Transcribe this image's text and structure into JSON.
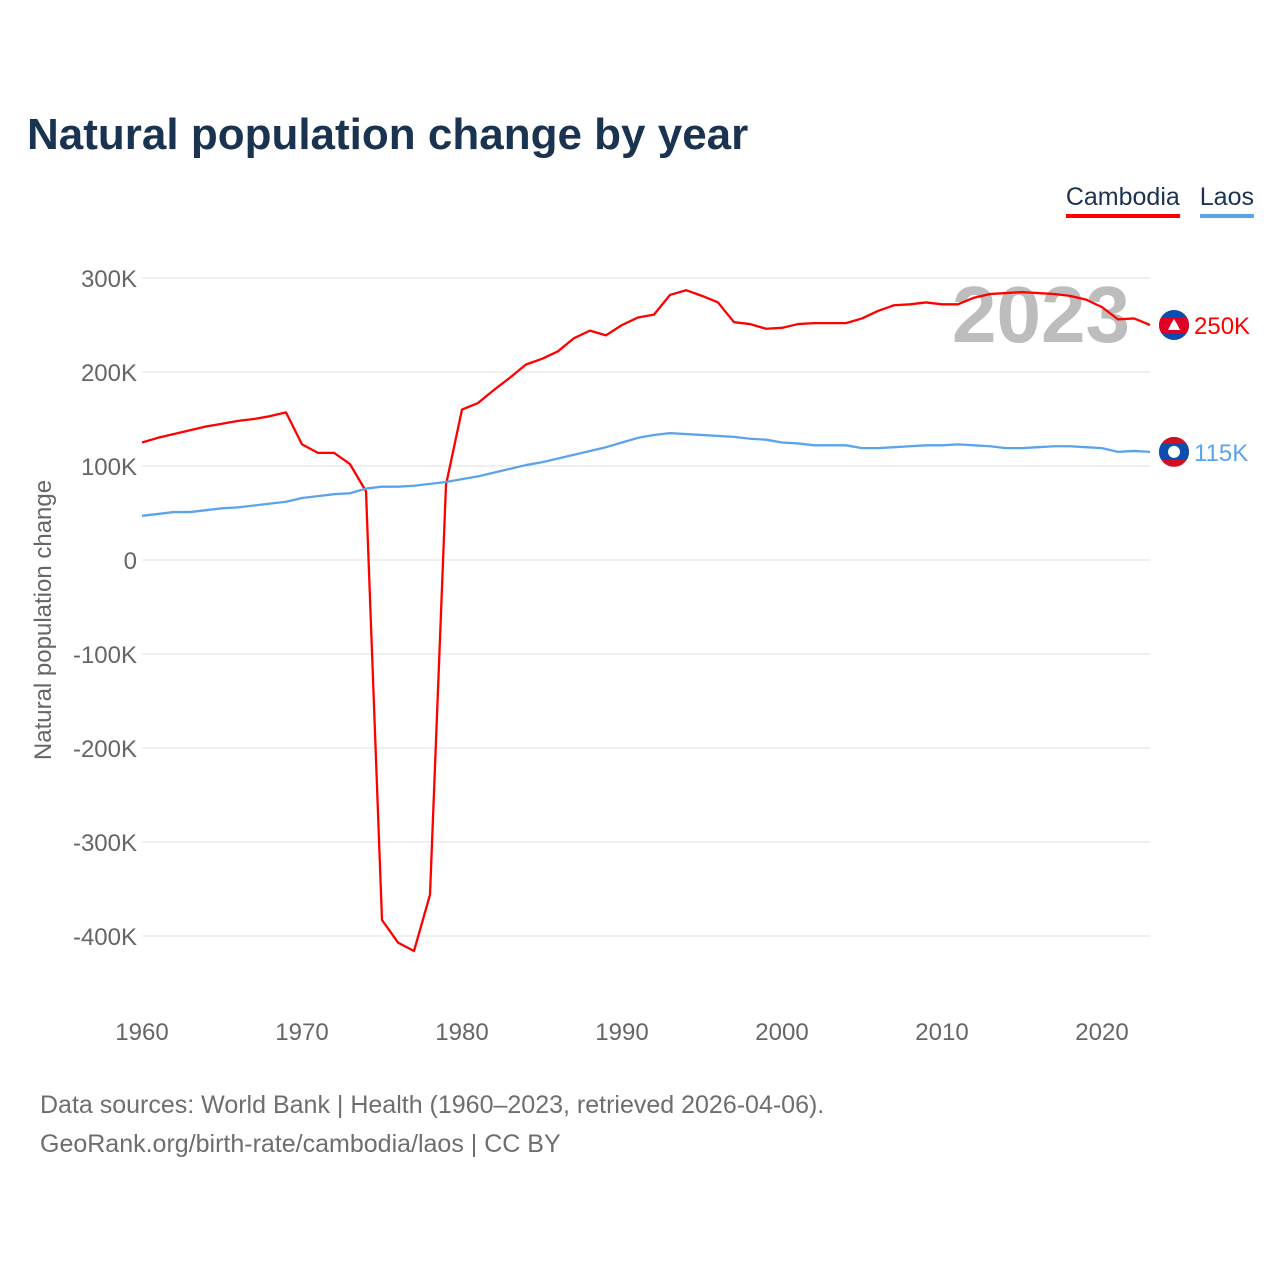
{
  "title": "Natural population change by year",
  "footer": {
    "line1": "Data sources: World Bank | Health (1960–2023, retrieved 2026-04-06).",
    "line2": "GeoRank.org/birth-rate/cambodia/laos | CC BY"
  },
  "chart_data": {
    "type": "line",
    "title": "Natural population change by year",
    "xlabel": "",
    "ylabel": "Natural population change",
    "xlim": [
      1960,
      2023
    ],
    "ylim": [
      -450000,
      320000
    ],
    "year_watermark": "2023",
    "x_ticks": [
      1960,
      1970,
      1980,
      1990,
      2000,
      2010,
      2020
    ],
    "x_tick_labels": [
      "1960",
      "1970",
      "1980",
      "1990",
      "2000",
      "2010",
      "2020"
    ],
    "y_ticks": [
      300000,
      200000,
      100000,
      0,
      -100000,
      -200000,
      -300000,
      -400000
    ],
    "y_tick_labels": [
      "300K",
      "200K",
      "100K",
      "0",
      "-100K",
      "-200K",
      "-300K",
      "-400K"
    ],
    "grid": true,
    "legend_placement": "top-right",
    "x": [
      1960,
      1961,
      1962,
      1963,
      1964,
      1965,
      1966,
      1967,
      1968,
      1969,
      1970,
      1971,
      1972,
      1973,
      1974,
      1975,
      1976,
      1977,
      1978,
      1979,
      1980,
      1981,
      1982,
      1983,
      1984,
      1985,
      1986,
      1987,
      1988,
      1989,
      1990,
      1991,
      1992,
      1993,
      1994,
      1995,
      1996,
      1997,
      1998,
      1999,
      2000,
      2001,
      2002,
      2003,
      2004,
      2005,
      2006,
      2007,
      2008,
      2009,
      2010,
      2011,
      2012,
      2013,
      2014,
      2015,
      2016,
      2017,
      2018,
      2019,
      2020,
      2021,
      2022,
      2023
    ],
    "series": [
      {
        "name": "Cambodia",
        "color": "#ff0000",
        "end_label": "250K",
        "values": [
          125,
          130,
          134,
          138,
          142,
          145,
          148,
          150,
          153,
          157,
          123,
          114,
          114,
          102,
          73,
          -383,
          -407,
          -416,
          -356,
          80,
          160,
          167,
          181,
          194,
          208,
          214,
          222,
          236,
          244,
          239,
          250,
          258,
          261,
          282,
          287,
          281,
          274,
          253,
          251,
          246,
          247,
          251,
          252,
          252,
          252,
          257,
          265,
          271,
          272,
          274,
          272,
          272,
          279,
          283,
          284,
          285,
          284,
          283,
          281,
          277,
          269,
          256,
          257,
          250
        ]
      },
      {
        "name": "Laos",
        "color": "#5ba4ea",
        "end_label": "115K",
        "values": [
          47,
          49,
          51,
          51,
          53,
          55,
          56,
          58,
          60,
          62,
          66,
          68,
          70,
          71,
          76,
          78,
          78,
          79,
          81,
          83,
          86,
          89,
          93,
          97,
          101,
          104,
          108,
          112,
          116,
          120,
          125,
          130,
          133,
          135,
          134,
          133,
          132,
          131,
          129,
          128,
          125,
          124,
          122,
          122,
          122,
          119,
          119,
          120,
          121,
          122,
          122,
          123,
          122,
          121,
          119,
          119,
          120,
          121,
          121,
          120,
          119,
          115,
          116,
          115
        ]
      }
    ],
    "value_unit": "thousands"
  }
}
